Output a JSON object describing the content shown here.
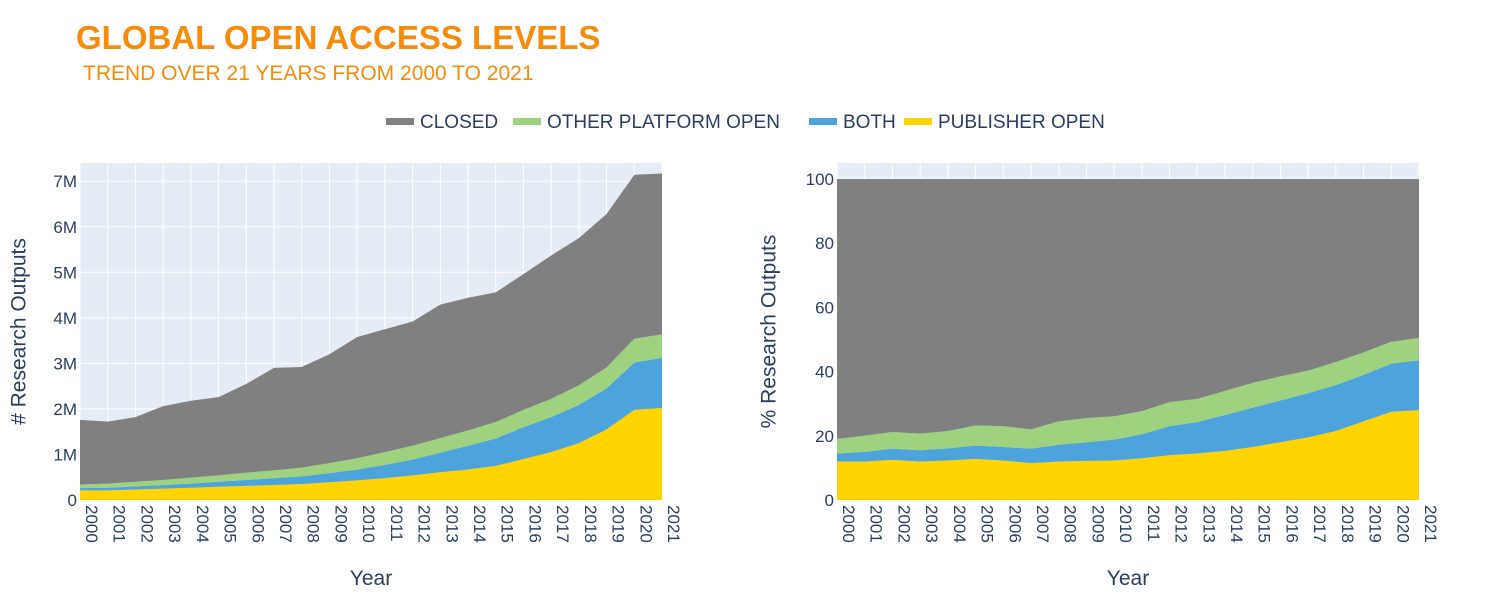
{
  "header": {
    "title": "GLOBAL OPEN ACCESS LEVELS",
    "subtitle": "TREND OVER 21 YEARS FROM 2000 TO 2021"
  },
  "colors": {
    "title": "#f78c0c",
    "plot_bg": "#e5ecf6",
    "grid": "#ffffff",
    "closed": "#808080",
    "other_platform_open": "#9fd27e",
    "both": "#4da3dc",
    "publisher_open": "#ffd400"
  },
  "legend": {
    "placement": "top-center",
    "items": [
      {
        "key": "closed",
        "label": "CLOSED"
      },
      {
        "key": "other_platform_open",
        "label": "OTHER PLATFORM OPEN"
      },
      {
        "key": "both",
        "label": "BOTH"
      },
      {
        "key": "publisher_open",
        "label": "PUBLISHER OPEN"
      }
    ]
  },
  "chart_data": [
    {
      "type": "area",
      "stacked": true,
      "xlabel": "Year",
      "ylabel": "# Research Outputs",
      "ylim": [
        0,
        7400000
      ],
      "yticks": [
        0,
        1000000,
        2000000,
        3000000,
        4000000,
        5000000,
        6000000,
        7000000
      ],
      "ytick_labels": [
        "0",
        "1M",
        "2M",
        "3M",
        "4M",
        "5M",
        "6M",
        "7M"
      ],
      "grid": true,
      "x": [
        2000,
        2001,
        2002,
        2003,
        2004,
        2005,
        2006,
        2007,
        2008,
        2009,
        2010,
        2011,
        2012,
        2013,
        2014,
        2015,
        2016,
        2017,
        2018,
        2019,
        2020,
        2021
      ],
      "x_labels": [
        "2000",
        "2001",
        "2002",
        "2003",
        "2004",
        "2005",
        "2006",
        "2007",
        "2008",
        "2009",
        "2010",
        "2011",
        "2012",
        "2013",
        "2014",
        "2015",
        "2016",
        "2017",
        "2018",
        "2019",
        "2020",
        "2021"
      ],
      "series": [
        {
          "name": "PUBLISHER OPEN",
          "key": "publisher_open",
          "values": [
            210000,
            210000,
            230000,
            250000,
            270000,
            290000,
            310000,
            330000,
            350000,
            390000,
            430000,
            480000,
            540000,
            610000,
            670000,
            750000,
            900000,
            1050000,
            1250000,
            1550000,
            1980000,
            2020000
          ]
        },
        {
          "name": "BOTH",
          "key": "both",
          "values": [
            50000,
            60000,
            70000,
            80000,
            90000,
            110000,
            130000,
            150000,
            170000,
            200000,
            240000,
            290000,
            350000,
            430000,
            520000,
            600000,
            700000,
            770000,
            840000,
            900000,
            1040000,
            1100000
          ]
        },
        {
          "name": "OTHER PLATFORM OPEN",
          "key": "other_platform_open",
          "values": [
            80000,
            90000,
            100000,
            110000,
            130000,
            140000,
            160000,
            170000,
            190000,
            220000,
            250000,
            280000,
            300000,
            320000,
            340000,
            360000,
            380000,
            400000,
            430000,
            460000,
            520000,
            520000
          ]
        },
        {
          "name": "CLOSED",
          "key": "closed",
          "values": [
            1420000,
            1360000,
            1420000,
            1620000,
            1690000,
            1720000,
            1950000,
            2250000,
            2210000,
            2390000,
            2660000,
            2700000,
            2730000,
            2930000,
            2910000,
            2850000,
            2980000,
            3150000,
            3230000,
            3370000,
            3600000,
            3530000
          ]
        }
      ]
    },
    {
      "type": "area",
      "stacked": true,
      "xlabel": "Year",
      "ylabel": "% Research Outputs",
      "ylim": [
        0,
        105
      ],
      "yticks": [
        0,
        20,
        40,
        60,
        80,
        100
      ],
      "ytick_labels": [
        "0",
        "20",
        "40",
        "60",
        "80",
        "100"
      ],
      "grid": true,
      "x": [
        2000,
        2001,
        2002,
        2003,
        2004,
        2005,
        2006,
        2007,
        2008,
        2009,
        2010,
        2011,
        2012,
        2013,
        2014,
        2015,
        2016,
        2017,
        2018,
        2019,
        2020,
        2021
      ],
      "x_labels": [
        "2000",
        "2001",
        "2002",
        "2003",
        "2004",
        "2005",
        "2006",
        "2007",
        "2008",
        "2009",
        "2010",
        "2011",
        "2012",
        "2013",
        "2014",
        "2015",
        "2016",
        "2017",
        "2018",
        "2019",
        "2020",
        "2021"
      ],
      "series": [
        {
          "name": "PUBLISHER OPEN",
          "key": "publisher_open",
          "values": [
            12,
            12,
            12.5,
            12,
            12.3,
            12.8,
            12.3,
            11.5,
            12,
            12.2,
            12.3,
            13,
            14,
            14.5,
            15.3,
            16.5,
            18,
            19.5,
            21.5,
            24.5,
            27.5,
            28
          ]
        },
        {
          "name": "BOTH",
          "key": "both",
          "values": [
            2.5,
            3,
            3.5,
            3.5,
            3.8,
            4.2,
            4.2,
            4.5,
            5.2,
            5.8,
            6.5,
            7.5,
            9,
            9.8,
            11.2,
            12.3,
            13,
            13.8,
            14.3,
            14.5,
            15,
            15.5
          ]
        },
        {
          "name": "OTHER PLATFORM OPEN",
          "key": "other_platform_open",
          "values": [
            4.5,
            5,
            5.2,
            5.2,
            5.4,
            6.2,
            6.5,
            6,
            7.3,
            7.5,
            7.3,
            7.2,
            7.5,
            7.2,
            7.5,
            7.7,
            7.5,
            7,
            7.2,
            7,
            6.8,
            7
          ]
        },
        {
          "name": "CLOSED",
          "key": "closed",
          "values": [
            81,
            80,
            78.8,
            79.3,
            78.5,
            76.8,
            77,
            78,
            75.5,
            74.5,
            73.9,
            72.3,
            69.5,
            68.5,
            66,
            63.5,
            61.5,
            59.7,
            57,
            54,
            50.7,
            49.5
          ]
        }
      ]
    }
  ]
}
